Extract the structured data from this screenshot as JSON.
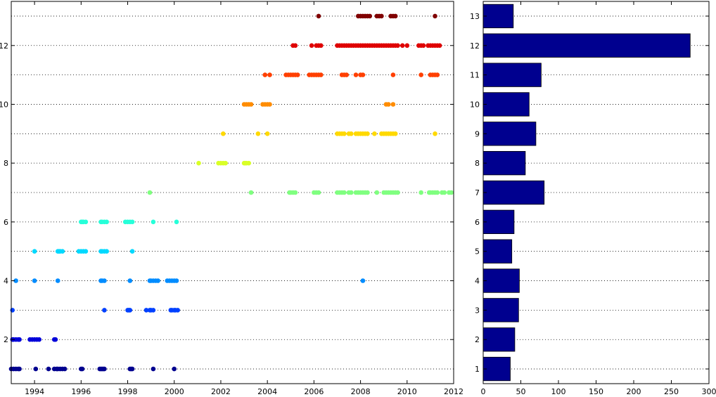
{
  "chart_data": [
    {
      "type": "scatter",
      "title": "",
      "xlabel": "",
      "ylabel": "",
      "xlim": [
        1993,
        2012
      ],
      "ylim": [
        0.5,
        13.5
      ],
      "grid": "horizontal dotted",
      "x_ticks": [
        1994,
        1996,
        1998,
        2000,
        2002,
        2004,
        2006,
        2008,
        2010,
        2012
      ],
      "y_ticks": [
        2,
        4,
        6,
        8,
        10,
        12
      ],
      "row_colors": [
        "#00008f",
        "#0000d9",
        "#0040ff",
        "#008cff",
        "#00d9ff",
        "#26ffd9",
        "#80ff80",
        "#d9ff26",
        "#ffd900",
        "#ff8c00",
        "#ff4000",
        "#df0000",
        "#800000"
      ],
      "series": [
        {
          "y": 1,
          "x": [
            1993.0,
            1993.1,
            1993.2,
            1993.3,
            1993.35,
            1994.05,
            1994.6,
            1994.85,
            1994.95,
            1995.0,
            1995.1,
            1995.2,
            1995.3,
            1996.0,
            1996.05,
            1996.8,
            1996.85,
            1996.9,
            1996.95,
            1997.0,
            1998.1,
            1998.15,
            1998.2,
            1999.1,
            2000.0
          ]
        },
        {
          "y": 2,
          "x": [
            1993.05,
            1993.1,
            1993.2,
            1993.3,
            1993.35,
            1993.8,
            1993.9,
            1994.0,
            1994.1,
            1994.2,
            1994.85,
            1994.9
          ]
        },
        {
          "y": 3,
          "x": [
            1993.05,
            1997.0,
            1998.0,
            1998.05,
            1998.1,
            1998.8,
            1998.95,
            1999.0,
            1999.1,
            1999.85,
            1999.9,
            2000.0,
            2000.05,
            2000.15
          ]
        },
        {
          "y": 4,
          "x": [
            1993.2,
            1994.0,
            1995.0,
            1996.85,
            1996.9,
            1997.0,
            1998.1,
            1998.95,
            1999.0,
            1999.1,
            1999.2,
            1999.3,
            1999.7,
            1999.8,
            1999.9,
            2000.0,
            2000.1,
            2008.1
          ]
        },
        {
          "y": 5,
          "x": [
            1994.0,
            1995.0,
            1995.05,
            1995.1,
            1995.2,
            1995.9,
            1996.0,
            1996.1,
            1996.2,
            1996.85,
            1996.9,
            1997.0,
            1997.1,
            1998.2
          ]
        },
        {
          "y": 6,
          "x": [
            1996.0,
            1996.05,
            1996.1,
            1996.2,
            1996.85,
            1996.9,
            1997.0,
            1997.1,
            1997.9,
            1998.0,
            1998.1,
            1998.2,
            1999.1,
            2000.1
          ]
        },
        {
          "y": 7,
          "x": [
            1998.95,
            2003.3,
            2004.95,
            2005.0,
            2005.1,
            2005.2,
            2006.0,
            2006.1,
            2006.2,
            2007.0,
            2007.1,
            2007.2,
            2007.3,
            2007.5,
            2007.6,
            2007.8,
            2007.9,
            2008.0,
            2008.1,
            2008.2,
            2008.3,
            2008.7,
            2009.0,
            2009.1,
            2009.2,
            2009.3,
            2009.4,
            2009.5,
            2009.6,
            2010.6,
            2010.95,
            2011.0,
            2011.1,
            2011.2,
            2011.3,
            2011.5,
            2011.6,
            2011.8,
            2011.9
          ]
        },
        {
          "y": 8,
          "x": [
            2001.05,
            2001.9,
            2002.0,
            2002.1,
            2002.2,
            2003.0,
            2003.05,
            2003.1,
            2003.2
          ]
        },
        {
          "y": 9,
          "x": [
            2002.1,
            2003.6,
            2004.0,
            2007.0,
            2007.1,
            2007.2,
            2007.3,
            2007.5,
            2007.6,
            2007.8,
            2007.9,
            2008.0,
            2008.1,
            2008.2,
            2008.3,
            2008.6,
            2008.9,
            2009.0,
            2009.1,
            2009.2,
            2009.3,
            2009.4,
            2009.5,
            2011.2
          ]
        },
        {
          "y": 10,
          "x": [
            2003.0,
            2003.1,
            2003.2,
            2003.3,
            2003.8,
            2003.9,
            2004.0,
            2004.1,
            2009.1,
            2009.2,
            2009.4
          ]
        },
        {
          "y": 11,
          "x": [
            2003.9,
            2004.1,
            2004.8,
            2004.9,
            2005.0,
            2005.1,
            2005.2,
            2005.3,
            2005.8,
            2005.9,
            2006.0,
            2006.1,
            2006.2,
            2006.3,
            2007.2,
            2007.3,
            2007.4,
            2007.8,
            2008.0,
            2008.1,
            2009.4,
            2010.6,
            2011.0,
            2011.1,
            2011.2,
            2011.3
          ]
        },
        {
          "y": 12,
          "x": [
            2005.1,
            2005.2,
            2005.9,
            2006.1,
            2006.2,
            2006.3,
            2007.0,
            2007.1,
            2007.2,
            2007.3,
            2007.4,
            2007.5,
            2007.6,
            2007.7,
            2007.8,
            2007.9,
            2008.0,
            2008.1,
            2008.2,
            2008.3,
            2008.4,
            2008.5,
            2008.6,
            2008.7,
            2008.8,
            2008.9,
            2009.0,
            2009.1,
            2009.2,
            2009.3,
            2009.4,
            2009.5,
            2009.6,
            2009.8,
            2010.0,
            2010.5,
            2010.6,
            2010.7,
            2010.9,
            2011.0,
            2011.1,
            2011.2,
            2011.3,
            2011.4
          ]
        },
        {
          "y": 13,
          "x": [
            2006.2,
            2007.9,
            2008.0,
            2008.1,
            2008.2,
            2008.3,
            2008.4,
            2008.7,
            2008.8,
            2008.9,
            2009.3,
            2009.4,
            2009.5,
            2011.2
          ]
        }
      ]
    },
    {
      "type": "bar",
      "orientation": "horizontal",
      "title": "",
      "xlabel": "",
      "ylabel": "",
      "xlim": [
        0,
        300
      ],
      "ylim": [
        0.5,
        13.5
      ],
      "grid": "horizontal dotted",
      "x_ticks": [
        0,
        50,
        100,
        150,
        200,
        250,
        300
      ],
      "categories": [
        "1",
        "2",
        "3",
        "4",
        "5",
        "6",
        "7",
        "8",
        "9",
        "10",
        "11",
        "12",
        "13"
      ],
      "values": [
        36,
        42,
        47,
        48,
        38,
        41,
        81,
        56,
        70,
        61,
        77,
        275,
        40
      ],
      "bar_color": "#00008f"
    }
  ]
}
